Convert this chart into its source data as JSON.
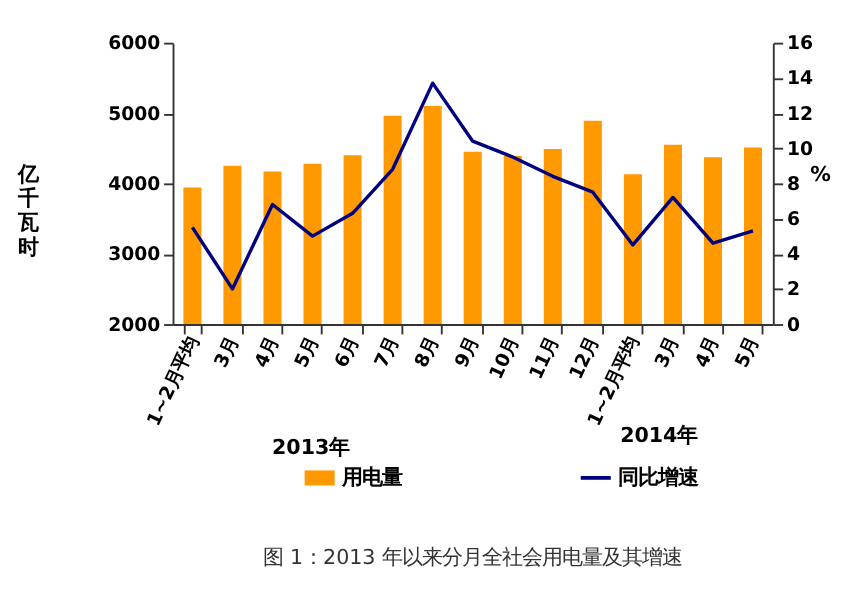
{
  "chart_data": {
    "type": "bar",
    "title": "图 1：2013 年以来分月全社会用电量及其增速",
    "categories": [
      "1~2月平均",
      "3月",
      "4月",
      "5月",
      "6月",
      "7月",
      "8月",
      "9月",
      "10月",
      "11月",
      "12月",
      "1~2月平均",
      "3月",
      "4月",
      "5月"
    ],
    "ylabel": "亿千瓦时",
    "y2label": "%",
    "ylim": [
      2000,
      6000
    ],
    "yticks": [
      2000,
      3000,
      4000,
      5000,
      6000
    ],
    "y2lim": [
      0,
      16
    ],
    "y2ticks": [
      0,
      2,
      4,
      6,
      8,
      10,
      12,
      14,
      16
    ],
    "series": [
      {
        "name": "用电量",
        "color": "#ff9900",
        "values": [
          3940,
          4250,
          4170,
          4280,
          4400,
          4960,
          5100,
          4450,
          4390,
          4490,
          4890,
          4130,
          4550,
          4370,
          4510
        ]
      },
      {
        "name": "同比增速",
        "type": "line",
        "axis": "y2",
        "color": "#000080",
        "values": [
          5.5,
          2.0,
          6.8,
          5.0,
          6.3,
          8.8,
          13.7,
          10.4,
          9.5,
          8.4,
          7.5,
          4.5,
          7.2,
          4.6,
          5.3
        ]
      }
    ],
    "annotations": [
      "2013年",
      "2014年"
    ],
    "legend": "bottom",
    "grid": false,
    "marker": "none"
  }
}
